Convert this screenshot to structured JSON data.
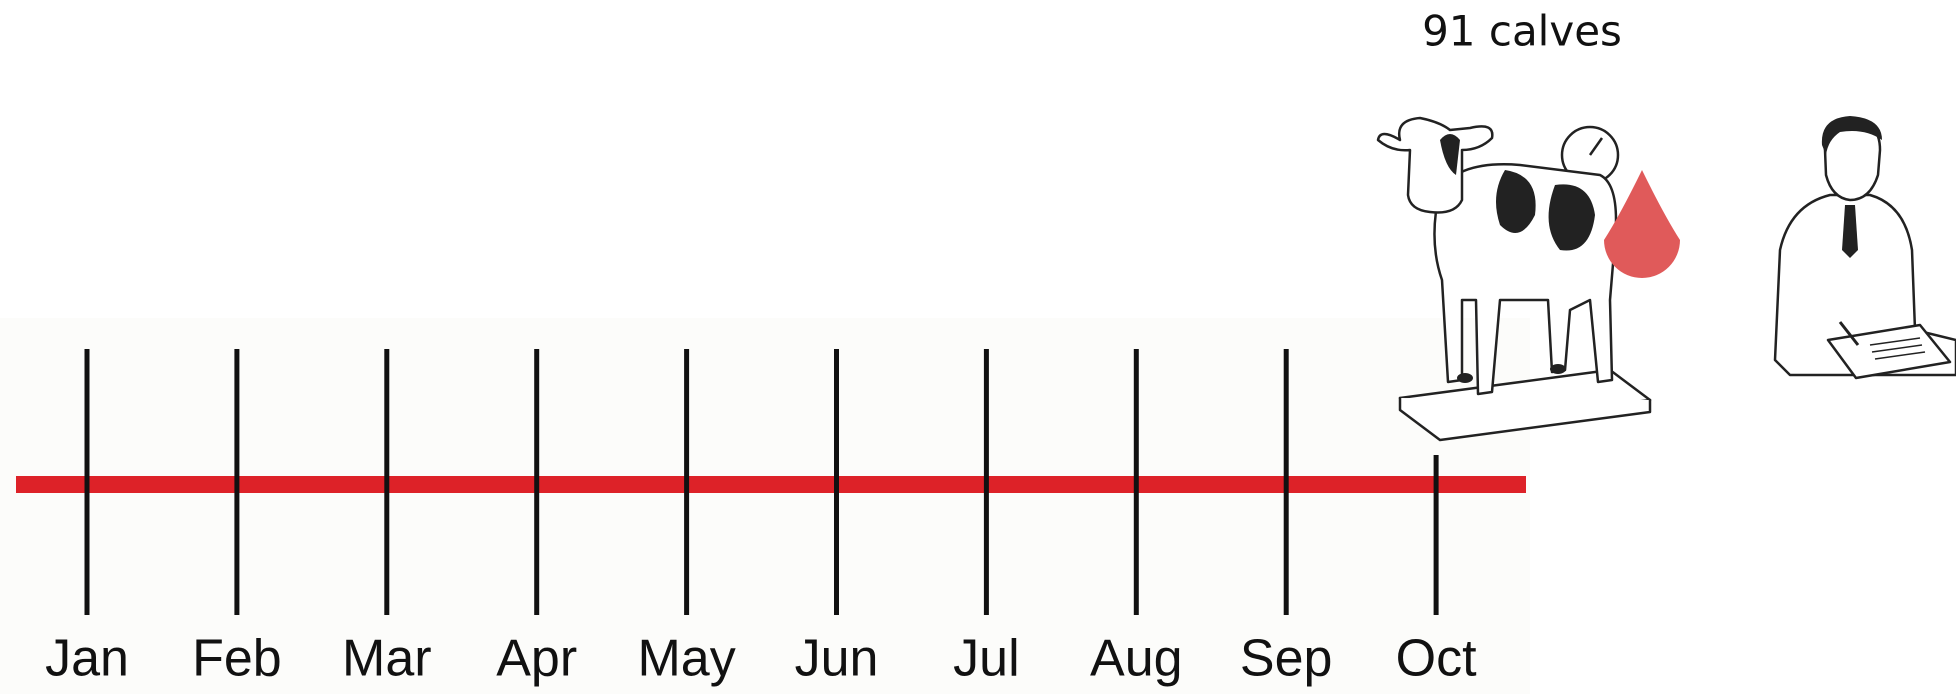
{
  "annotation": "91 calves",
  "timeline": {
    "months": [
      "Jan",
      "Feb",
      "Mar",
      "Apr",
      "May",
      "Jun",
      "Jul",
      "Aug",
      "Sep",
      "Oct"
    ]
  }
}
